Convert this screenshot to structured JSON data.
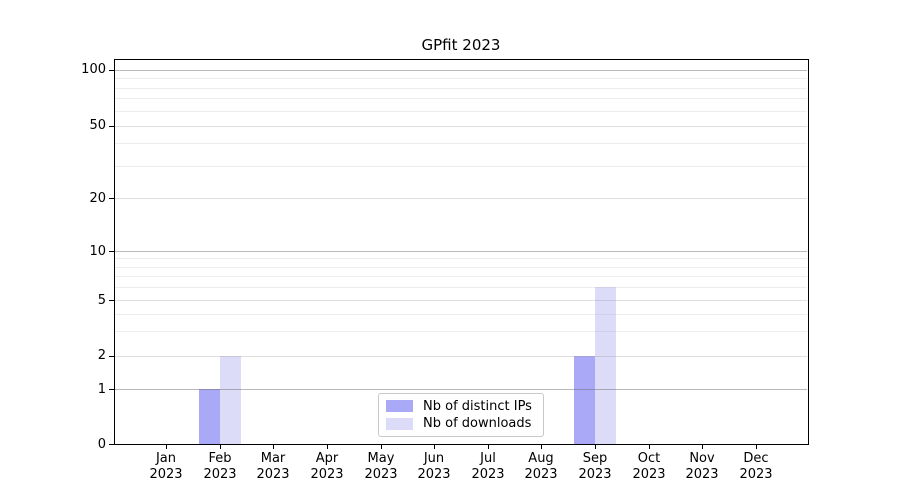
{
  "figure": {
    "background": "#ffffff",
    "border_color": "#000000"
  },
  "chart_data": {
    "type": "bar",
    "title": "GPfit 2023",
    "xlabel": "",
    "ylabel": "",
    "categories": [
      "Jan 2023",
      "Feb 2023",
      "Mar 2023",
      "Apr 2023",
      "May 2023",
      "Jun 2023",
      "Jul 2023",
      "Aug 2023",
      "Sep 2023",
      "Oct 2023",
      "Nov 2023",
      "Dec 2023"
    ],
    "series": [
      {
        "name": "Nb of distinct IPs",
        "color": "#a9a9f7",
        "values": [
          0,
          1,
          0,
          0,
          0,
          0,
          0,
          0,
          2,
          0,
          0,
          0
        ]
      },
      {
        "name": "Nb of downloads",
        "color": "#dcdcf9",
        "values": [
          0,
          2,
          0,
          0,
          0,
          0,
          0,
          0,
          6,
          0,
          0,
          0
        ]
      }
    ],
    "yscale": "symlog",
    "ylim": [
      0,
      114
    ],
    "y_major_ticks": [
      1,
      10,
      100
    ],
    "y_labeled_ticks": [
      0,
      1,
      2,
      5,
      10,
      20,
      50,
      100
    ],
    "y_minor_gridlines": [
      2,
      3,
      4,
      5,
      6,
      7,
      8,
      9,
      20,
      30,
      40,
      50,
      60,
      70,
      80,
      90
    ],
    "grid": "horizontal, major and minor, on top of bars",
    "legend_position": "inside lower-center"
  }
}
